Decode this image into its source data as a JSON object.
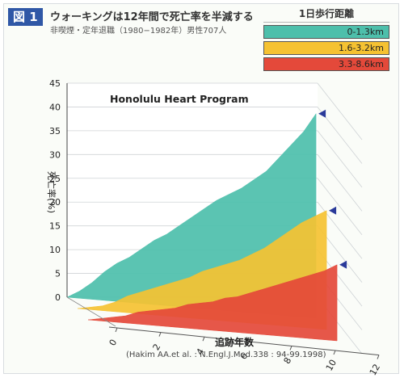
{
  "header": {
    "figure_label": "図 1",
    "title": "ウォーキングは12年間で死亡率を半減する",
    "subtitle": "非喫煙・定年退職（1980−1982年）男性707人"
  },
  "legend": {
    "title": "1日歩行距離",
    "items": [
      {
        "label": "0-1.3km",
        "color": "#4dbfab"
      },
      {
        "label": "1.6-3.2km",
        "color": "#f5c232"
      },
      {
        "label": "3.3-8.6km",
        "color": "#e4493a"
      }
    ]
  },
  "chart_data": {
    "type": "area",
    "title": "Honolulu Heart Program",
    "xlabel": "追跡年数",
    "ylabel": "死亡率(%)",
    "xlim": [
      0,
      12
    ],
    "ylim": [
      0,
      45
    ],
    "x_ticks": [
      0,
      2,
      4,
      6,
      8,
      10,
      12
    ],
    "y_ticks": [
      0,
      5,
      10,
      15,
      20,
      25,
      30,
      35,
      40,
      45
    ],
    "series": [
      {
        "name": "0-1.3km",
        "color": "#4dbfab",
        "x": [
          0,
          0.5,
          1,
          1.5,
          2,
          2.5,
          3,
          3.5,
          4,
          4.5,
          5,
          5.5,
          6,
          6.5,
          7,
          7.5,
          8,
          8.5,
          9,
          9.5,
          10
        ],
        "y": [
          0,
          1.5,
          3.5,
          6,
          8,
          9.5,
          11.5,
          13.5,
          15,
          17,
          19,
          21,
          23,
          24.5,
          26,
          28,
          30,
          33,
          36,
          39,
          43
        ]
      },
      {
        "name": "1.6-3.2km",
        "color": "#f5c232",
        "x": [
          0,
          0.5,
          1,
          1.5,
          2,
          2.5,
          3,
          3.5,
          4,
          4.5,
          5,
          5.5,
          6,
          6.5,
          7,
          7.5,
          8,
          8.5,
          9,
          9.5,
          10
        ],
        "y": [
          0,
          0.5,
          1,
          2,
          3.5,
          4.5,
          5.5,
          6.5,
          7.5,
          8.5,
          10,
          11,
          12,
          13,
          14.5,
          16,
          18,
          20,
          22,
          23.5,
          25
        ]
      },
      {
        "name": "3.3-8.6km",
        "color": "#e4493a",
        "x": [
          0,
          0.5,
          1,
          1.5,
          2,
          2.5,
          3,
          3.5,
          4,
          4.5,
          5,
          5.5,
          6,
          6.5,
          7,
          7.5,
          8,
          8.5,
          9,
          9.5,
          10
        ],
        "y": [
          0,
          0.5,
          1,
          1.5,
          2.5,
          3,
          3.5,
          4,
          5,
          5.5,
          6,
          7,
          7.5,
          8.5,
          9.5,
          10.5,
          11.5,
          12.5,
          13.5,
          14.5,
          16
        ]
      }
    ]
  },
  "citation": "(Hakim AA.et al. : N.Engl.J.Med.338 : 94-99.1998)"
}
